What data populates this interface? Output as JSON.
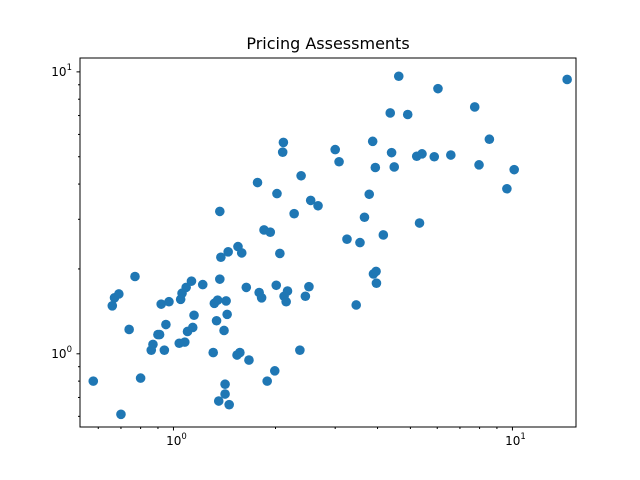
{
  "chart_data": {
    "type": "scatter",
    "title": "Pricing Assessments",
    "xlabel": "",
    "ylabel": "",
    "xscale": "log",
    "yscale": "log",
    "xlim": [
      0.53,
      15.4
    ],
    "ylim": [
      0.55,
      11.2
    ],
    "grid": false,
    "x_ticks": [
      {
        "base": "10",
        "exp": "0",
        "value": 1
      },
      {
        "base": "10",
        "exp": "1",
        "value": 10
      }
    ],
    "y_ticks": [
      {
        "base": "10",
        "exp": "0",
        "value": 1
      },
      {
        "base": "10",
        "exp": "1",
        "value": 10
      }
    ],
    "marker_color": "#1f77b4",
    "points": [
      [
        0.58,
        0.8
      ],
      [
        0.66,
        1.48
      ],
      [
        0.67,
        1.58
      ],
      [
        0.69,
        1.63
      ],
      [
        0.7,
        0.61
      ],
      [
        0.74,
        1.22
      ],
      [
        0.77,
        1.88
      ],
      [
        0.8,
        0.82
      ],
      [
        0.86,
        1.03
      ],
      [
        0.87,
        1.08
      ],
      [
        0.9,
        1.17
      ],
      [
        0.91,
        1.17
      ],
      [
        0.92,
        1.5
      ],
      [
        0.94,
        1.03
      ],
      [
        0.95,
        1.27
      ],
      [
        0.97,
        1.53
      ],
      [
        1.04,
        1.09
      ],
      [
        1.05,
        1.56
      ],
      [
        1.06,
        1.64
      ],
      [
        1.08,
        1.1
      ],
      [
        1.09,
        1.72
      ],
      [
        1.1,
        1.2
      ],
      [
        1.13,
        1.81
      ],
      [
        1.14,
        1.24
      ],
      [
        1.15,
        1.37
      ],
      [
        1.22,
        1.76
      ],
      [
        1.31,
        1.01
      ],
      [
        1.32,
        1.51
      ],
      [
        1.34,
        1.31
      ],
      [
        1.35,
        1.55
      ],
      [
        1.36,
        0.68
      ],
      [
        1.37,
        1.84
      ],
      [
        1.37,
        3.2
      ],
      [
        1.38,
        2.2
      ],
      [
        1.41,
        1.21
      ],
      [
        1.42,
        0.72
      ],
      [
        1.42,
        0.78
      ],
      [
        1.43,
        1.54
      ],
      [
        1.44,
        1.38
      ],
      [
        1.45,
        2.3
      ],
      [
        1.46,
        0.66
      ],
      [
        1.54,
        0.99
      ],
      [
        1.55,
        2.4
      ],
      [
        1.57,
        1.01
      ],
      [
        1.59,
        2.28
      ],
      [
        1.64,
        1.72
      ],
      [
        1.67,
        0.95
      ],
      [
        1.77,
        4.05
      ],
      [
        1.79,
        1.65
      ],
      [
        1.82,
        1.58
      ],
      [
        1.85,
        2.75
      ],
      [
        1.89,
        0.8
      ],
      [
        1.93,
        2.7
      ],
      [
        1.99,
        0.87
      ],
      [
        2.01,
        1.75
      ],
      [
        2.02,
        3.7
      ],
      [
        2.06,
        2.27
      ],
      [
        2.1,
        5.19
      ],
      [
        2.11,
        5.62
      ],
      [
        2.12,
        1.6
      ],
      [
        2.15,
        1.53
      ],
      [
        2.17,
        1.67
      ],
      [
        2.27,
        3.14
      ],
      [
        2.36,
        1.03
      ],
      [
        2.38,
        4.28
      ],
      [
        2.45,
        1.6
      ],
      [
        2.51,
        1.73
      ],
      [
        2.54,
        3.5
      ],
      [
        2.67,
        3.35
      ],
      [
        3.0,
        5.3
      ],
      [
        3.08,
        4.8
      ],
      [
        3.25,
        2.55
      ],
      [
        3.46,
        1.49
      ],
      [
        3.55,
        2.48
      ],
      [
        3.66,
        3.05
      ],
      [
        3.78,
        3.68
      ],
      [
        3.87,
        5.67
      ],
      [
        3.89,
        1.92
      ],
      [
        3.94,
        4.58
      ],
      [
        3.96,
        1.96
      ],
      [
        3.97,
        1.78
      ],
      [
        4.16,
        2.64
      ],
      [
        4.36,
        7.15
      ],
      [
        4.4,
        5.17
      ],
      [
        4.48,
        4.6
      ],
      [
        4.62,
        9.65
      ],
      [
        4.91,
        7.06
      ],
      [
        5.22,
        5.02
      ],
      [
        5.32,
        2.91
      ],
      [
        5.41,
        5.12
      ],
      [
        5.88,
        5.0
      ],
      [
        6.03,
        8.72
      ],
      [
        6.58,
        5.07
      ],
      [
        7.74,
        7.51
      ],
      [
        7.97,
        4.68
      ],
      [
        8.55,
        5.77
      ],
      [
        9.63,
        3.85
      ],
      [
        10.12,
        4.5
      ],
      [
        14.5,
        9.4
      ]
    ]
  }
}
